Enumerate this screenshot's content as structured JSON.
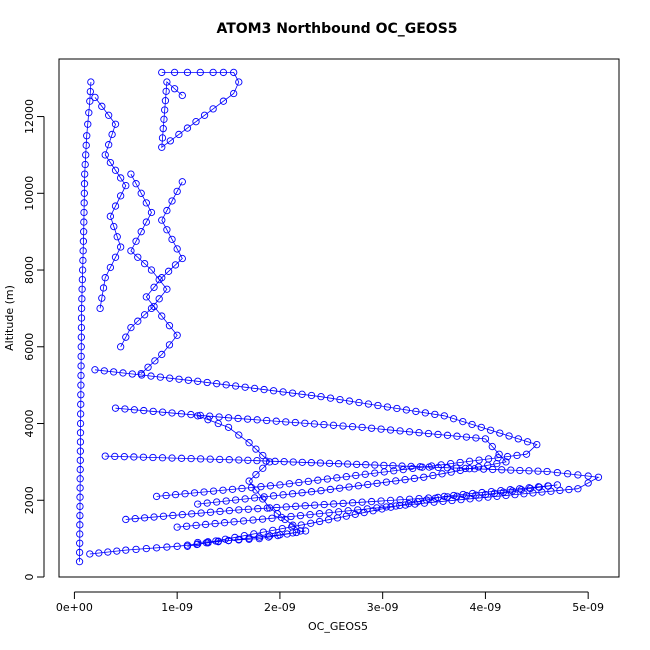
{
  "chart_data": {
    "type": "scatter",
    "title": "ATOM3 Northbound OC_GEOS5",
    "xlabel": "OC_GEOS5",
    "ylabel": "Altitude (m)",
    "xlim": [
      -1.5e-10,
      5.3e-09
    ],
    "ylim": [
      0,
      13500
    ],
    "x_ticks": [
      0,
      1e-09,
      2e-09,
      3e-09,
      4e-09,
      5e-09
    ],
    "x_tick_labels": [
      "0e+00",
      "1e-09",
      "2e-09",
      "3e-09",
      "4e-09",
      "5e-09"
    ],
    "y_ticks": [
      0,
      2000,
      4000,
      6000,
      8000,
      10000,
      12000
    ],
    "y_tick_labels": [
      "0",
      "2000",
      "4000",
      "6000",
      "8000",
      "10000",
      "12000"
    ],
    "grid": false,
    "legend": "none",
    "series_color": "#0000ff",
    "series": [
      {
        "style": "points-lines",
        "x": [
          1.6e-10,
          1.5e-10,
          1.2e-10,
          1e-10,
          9e-11,
          7e-11,
          6e-11,
          5e-11
        ],
        "y": [
          12900,
          12400,
          11500,
          10500,
          9000,
          7000,
          4000,
          400
        ]
      },
      {
        "style": "points-lines",
        "x": [
          8.5e-10,
          1.1e-09,
          1.35e-09,
          1.55e-09,
          1.6e-09,
          1.55e-09,
          1.35e-09,
          1.1e-09,
          8.5e-10,
          9e-10,
          1.05e-09
        ],
        "y": [
          13150,
          13150,
          13150,
          13150,
          12900,
          12600,
          12200,
          11700,
          11200,
          12900,
          12550
        ]
      },
      {
        "style": "points-lines",
        "x": [
          1.05e-09,
          9.5e-10,
          8.5e-10,
          9.5e-10,
          1.05e-09,
          8.5e-10,
          7e-10,
          8.5e-10,
          1e-09,
          8.5e-10,
          6.5e-10
        ],
        "y": [
          10300,
          9800,
          9300,
          8800,
          8300,
          7800,
          7300,
          6800,
          6300,
          5800,
          5300
        ]
      },
      {
        "style": "points-lines",
        "x": [
          5.5e-10,
          6.5e-10,
          7.5e-10,
          6.5e-10,
          5.5e-10,
          7.5e-10,
          9e-10,
          7.5e-10,
          5.5e-10,
          4.5e-10
        ],
        "y": [
          10500,
          10000,
          9500,
          9000,
          8500,
          8000,
          7500,
          7000,
          6500,
          6000
        ]
      },
      {
        "style": "points-lines",
        "x": [
          2e-10,
          1.2e-09,
          2.4e-09,
          3.6e-09,
          4.5e-09,
          4.4e-09,
          3.2e-09,
          2e-09,
          8e-10
        ],
        "y": [
          5400,
          5100,
          4700,
          4200,
          3450,
          3200,
          2800,
          2400,
          2100
        ]
      },
      {
        "style": "points-lines",
        "x": [
          4e-10,
          1.5e-09,
          2.8e-09,
          4e-09,
          4.2e-09,
          3.4e-09,
          2.4e-09,
          1.2e-09
        ],
        "y": [
          4400,
          4150,
          3900,
          3600,
          3000,
          2600,
          2250,
          1900
        ]
      },
      {
        "style": "points-lines",
        "x": [
          3e-10,
          1.6e-09,
          3.1e-09,
          4.6e-09,
          5.1e-09,
          4.9e-09,
          3.5e-09,
          2.2e-09,
          1e-09
        ],
        "y": [
          3150,
          3050,
          2900,
          2750,
          2600,
          2300,
          1950,
          1600,
          1300
        ]
      },
      {
        "style": "points-lines",
        "x": [
          5e-10,
          1.6e-09,
          2.8e-09,
          4e-09,
          4.7e-09,
          3.6e-09,
          2.3e-09,
          1.1e-09
        ],
        "y": [
          1500,
          1750,
          1950,
          2150,
          2400,
          2100,
          1400,
          800
        ]
      },
      {
        "style": "points-lines",
        "x": [
          1.5e-10,
          5e-10,
          1e-09,
          1.5e-09,
          2e-09,
          2.25e-09,
          1.8e-09,
          1.2e-09
        ],
        "y": [
          600,
          700,
          800,
          950,
          1100,
          1200,
          1000,
          900
        ]
      },
      {
        "style": "points-lines",
        "x": [
          1.2e-09,
          1.5e-09,
          1.7e-09,
          1.9e-09,
          1.7e-09,
          1.9e-09,
          2.2e-09
        ],
        "y": [
          4200,
          3900,
          3500,
          3000,
          2500,
          1800,
          1200
        ]
      },
      {
        "style": "points-lines",
        "x": [
          2e-10,
          4e-10,
          3e-10,
          5e-10,
          3.5e-10,
          4.5e-10,
          3e-10,
          2.5e-10
        ],
        "y": [
          12500,
          11800,
          11000,
          10200,
          9400,
          8600,
          7800,
          7000
        ]
      }
    ]
  }
}
